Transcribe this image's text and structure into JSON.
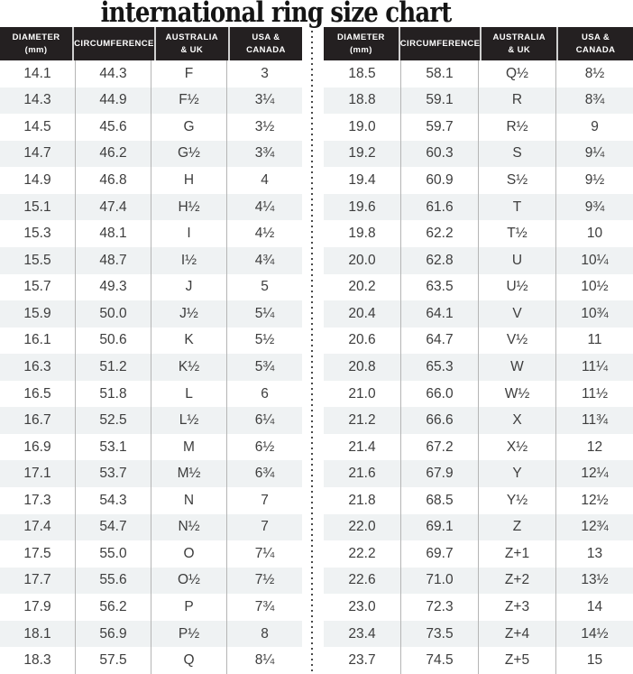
{
  "chart_data": {
    "type": "table",
    "title": "international ring size chart",
    "columns": [
      "DIAMETER\n(mm)",
      "CIRCUMFERENCE",
      "AUSTRALIA\n& UK",
      "USA &\nCANADA"
    ],
    "tables": [
      {
        "name": "left",
        "rows": [
          [
            "14.1",
            "44.3",
            "F",
            "3"
          ],
          [
            "14.3",
            "44.9",
            "F½",
            "3¼"
          ],
          [
            "14.5",
            "45.6",
            "G",
            "3½"
          ],
          [
            "14.7",
            "46.2",
            "G½",
            "3¾"
          ],
          [
            "14.9",
            "46.8",
            "H",
            "4"
          ],
          [
            "15.1",
            "47.4",
            "H½",
            "4¼"
          ],
          [
            "15.3",
            "48.1",
            "I",
            "4½"
          ],
          [
            "15.5",
            "48.7",
            "I½",
            "4¾"
          ],
          [
            "15.7",
            "49.3",
            "J",
            "5"
          ],
          [
            "15.9",
            "50.0",
            "J½",
            "5¼"
          ],
          [
            "16.1",
            "50.6",
            "K",
            "5½"
          ],
          [
            "16.3",
            "51.2",
            "K½",
            "5¾"
          ],
          [
            "16.5",
            "51.8",
            "L",
            "6"
          ],
          [
            "16.7",
            "52.5",
            "L½",
            "6¼"
          ],
          [
            "16.9",
            "53.1",
            "M",
            "6½"
          ],
          [
            "17.1",
            "53.7",
            "M½",
            "6¾"
          ],
          [
            "17.3",
            "54.3",
            "N",
            "7"
          ],
          [
            "17.4",
            "54.7",
            "N½",
            "7"
          ],
          [
            "17.5",
            "55.0",
            "O",
            "7¼"
          ],
          [
            "17.7",
            "55.6",
            "O½",
            "7½"
          ],
          [
            "17.9",
            "56.2",
            "P",
            "7¾"
          ],
          [
            "18.1",
            "56.9",
            "P½",
            "8"
          ],
          [
            "18.3",
            "57.5",
            "Q",
            "8¼"
          ]
        ]
      },
      {
        "name": "right",
        "rows": [
          [
            "18.5",
            "58.1",
            "Q½",
            "8½"
          ],
          [
            "18.8",
            "59.1",
            "R",
            "8¾"
          ],
          [
            "19.0",
            "59.7",
            "R½",
            "9"
          ],
          [
            "19.2",
            "60.3",
            "S",
            "9¼"
          ],
          [
            "19.4",
            "60.9",
            "S½",
            "9½"
          ],
          [
            "19.6",
            "61.6",
            "T",
            "9¾"
          ],
          [
            "19.8",
            "62.2",
            "T½",
            "10"
          ],
          [
            "20.0",
            "62.8",
            "U",
            "10¼"
          ],
          [
            "20.2",
            "63.5",
            "U½",
            "10½"
          ],
          [
            "20.4",
            "64.1",
            "V",
            "10¾"
          ],
          [
            "20.6",
            "64.7",
            "V½",
            "11"
          ],
          [
            "20.8",
            "65.3",
            "W",
            "11¼"
          ],
          [
            "21.0",
            "66.0",
            "W½",
            "11½"
          ],
          [
            "21.2",
            "66.6",
            "X",
            "11¾"
          ],
          [
            "21.4",
            "67.2",
            "X½",
            "12"
          ],
          [
            "21.6",
            "67.9",
            "Y",
            "12¼"
          ],
          [
            "21.8",
            "68.5",
            "Y½",
            "12½"
          ],
          [
            "22.0",
            "69.1",
            "Z",
            "12¾"
          ],
          [
            "22.2",
            "69.7",
            "Z+1",
            "13"
          ],
          [
            "22.6",
            "71.0",
            "Z+2",
            "13½"
          ],
          [
            "23.0",
            "72.3",
            "Z+3",
            "14"
          ],
          [
            "23.4",
            "73.5",
            "Z+4",
            "14½"
          ],
          [
            "23.7",
            "74.5",
            "Z+5",
            "15"
          ]
        ]
      }
    ]
  },
  "colors": {
    "header_bg": "#242021",
    "header_text": "#ffffff",
    "row_stripe": "#eff2f3",
    "body_text": "#3d3d3d",
    "column_divider": "#b5b5b5",
    "header_divider": "#d0d0d0",
    "dotted_divider": "#4a4a4a",
    "title_text": "#151515"
  }
}
